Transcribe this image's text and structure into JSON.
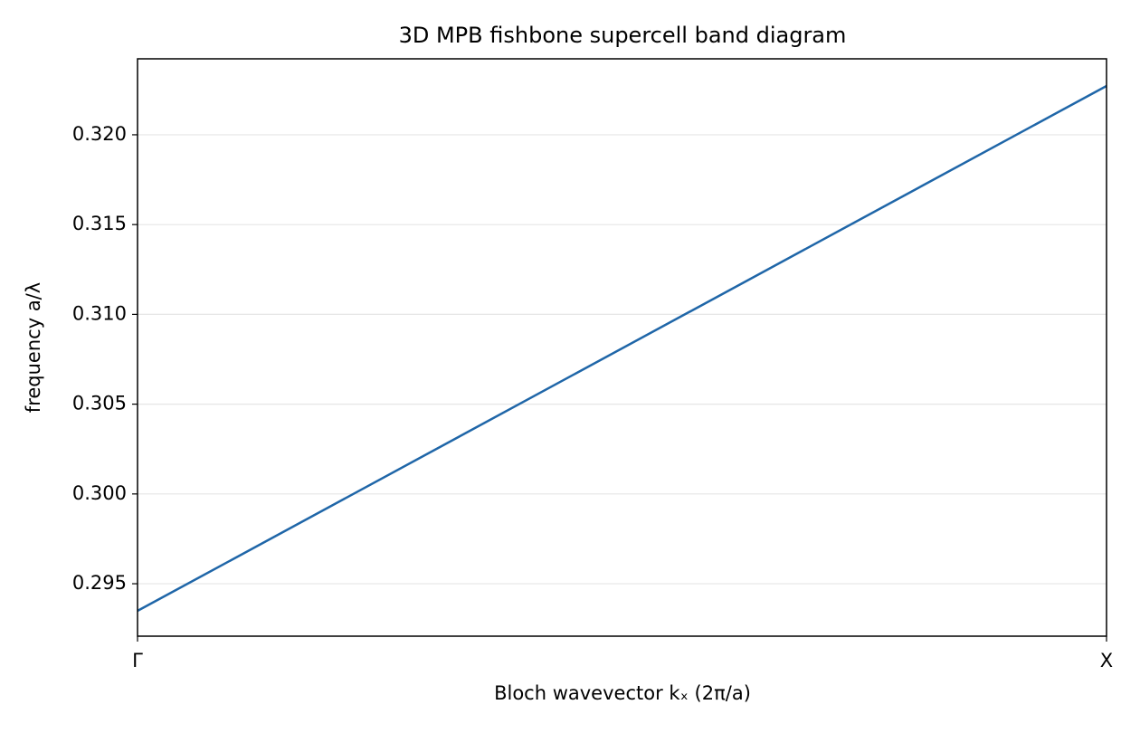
{
  "chart_data": {
    "type": "line",
    "title": "3D MPB fishbone supercell band diagram",
    "x_label": "Bloch wavevector kₓ (2π/a)",
    "y_label": "frequency a/λ",
    "x": [
      0,
      1
    ],
    "series": [
      {
        "color": "#1f66a8",
        "values": [
          0.29349,
          0.32272
        ]
      }
    ],
    "xlim": [
      0,
      1
    ],
    "xticks": [
      {
        "value": 0,
        "label": "Γ"
      },
      {
        "value": 1,
        "label": "X"
      }
    ],
    "ylim": [
      0.29208,
      0.32423
    ],
    "yticks": [
      {
        "value": 0.295,
        "label": "0.295"
      },
      {
        "value": 0.3,
        "label": "0.300"
      },
      {
        "value": 0.305,
        "label": "0.305"
      },
      {
        "value": 0.31,
        "label": "0.310"
      },
      {
        "value": 0.315,
        "label": "0.315"
      },
      {
        "value": 0.32,
        "label": "0.320"
      }
    ],
    "grid": true
  }
}
